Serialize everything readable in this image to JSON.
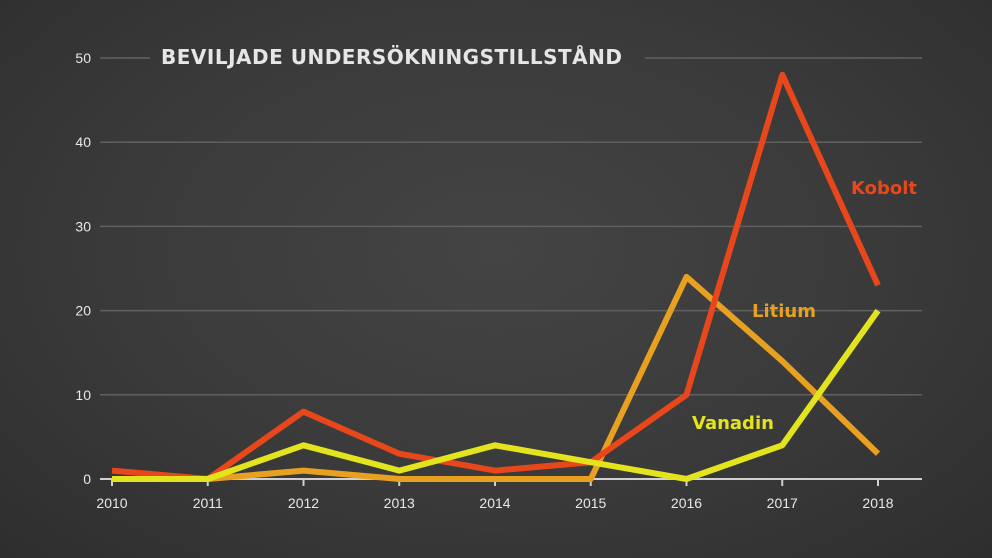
{
  "chart_data": {
    "type": "line",
    "title": "BEVILJADE UNDERSÖKNINGSTILLSTÅND",
    "xlabel": "",
    "ylabel": "",
    "x": [
      "2010",
      "2011",
      "2012",
      "2013",
      "2014",
      "2015",
      "2016",
      "2017",
      "2018"
    ],
    "ylim": [
      0,
      50
    ],
    "yticks": [
      "0",
      "10",
      "20",
      "30",
      "40",
      "50"
    ],
    "grid": true,
    "series": [
      {
        "name": "Kobolt",
        "color": "#e8471b",
        "values": [
          1,
          0,
          8,
          3,
          1,
          2,
          10,
          48,
          23
        ]
      },
      {
        "name": "Litium",
        "color": "#e8a020",
        "values": [
          0,
          0,
          1,
          0,
          0,
          0,
          24,
          14,
          3
        ]
      },
      {
        "name": "Vanadin",
        "color": "#e4e41e",
        "values": [
          0,
          0,
          4,
          1,
          4,
          2,
          0,
          4,
          20
        ]
      }
    ]
  }
}
